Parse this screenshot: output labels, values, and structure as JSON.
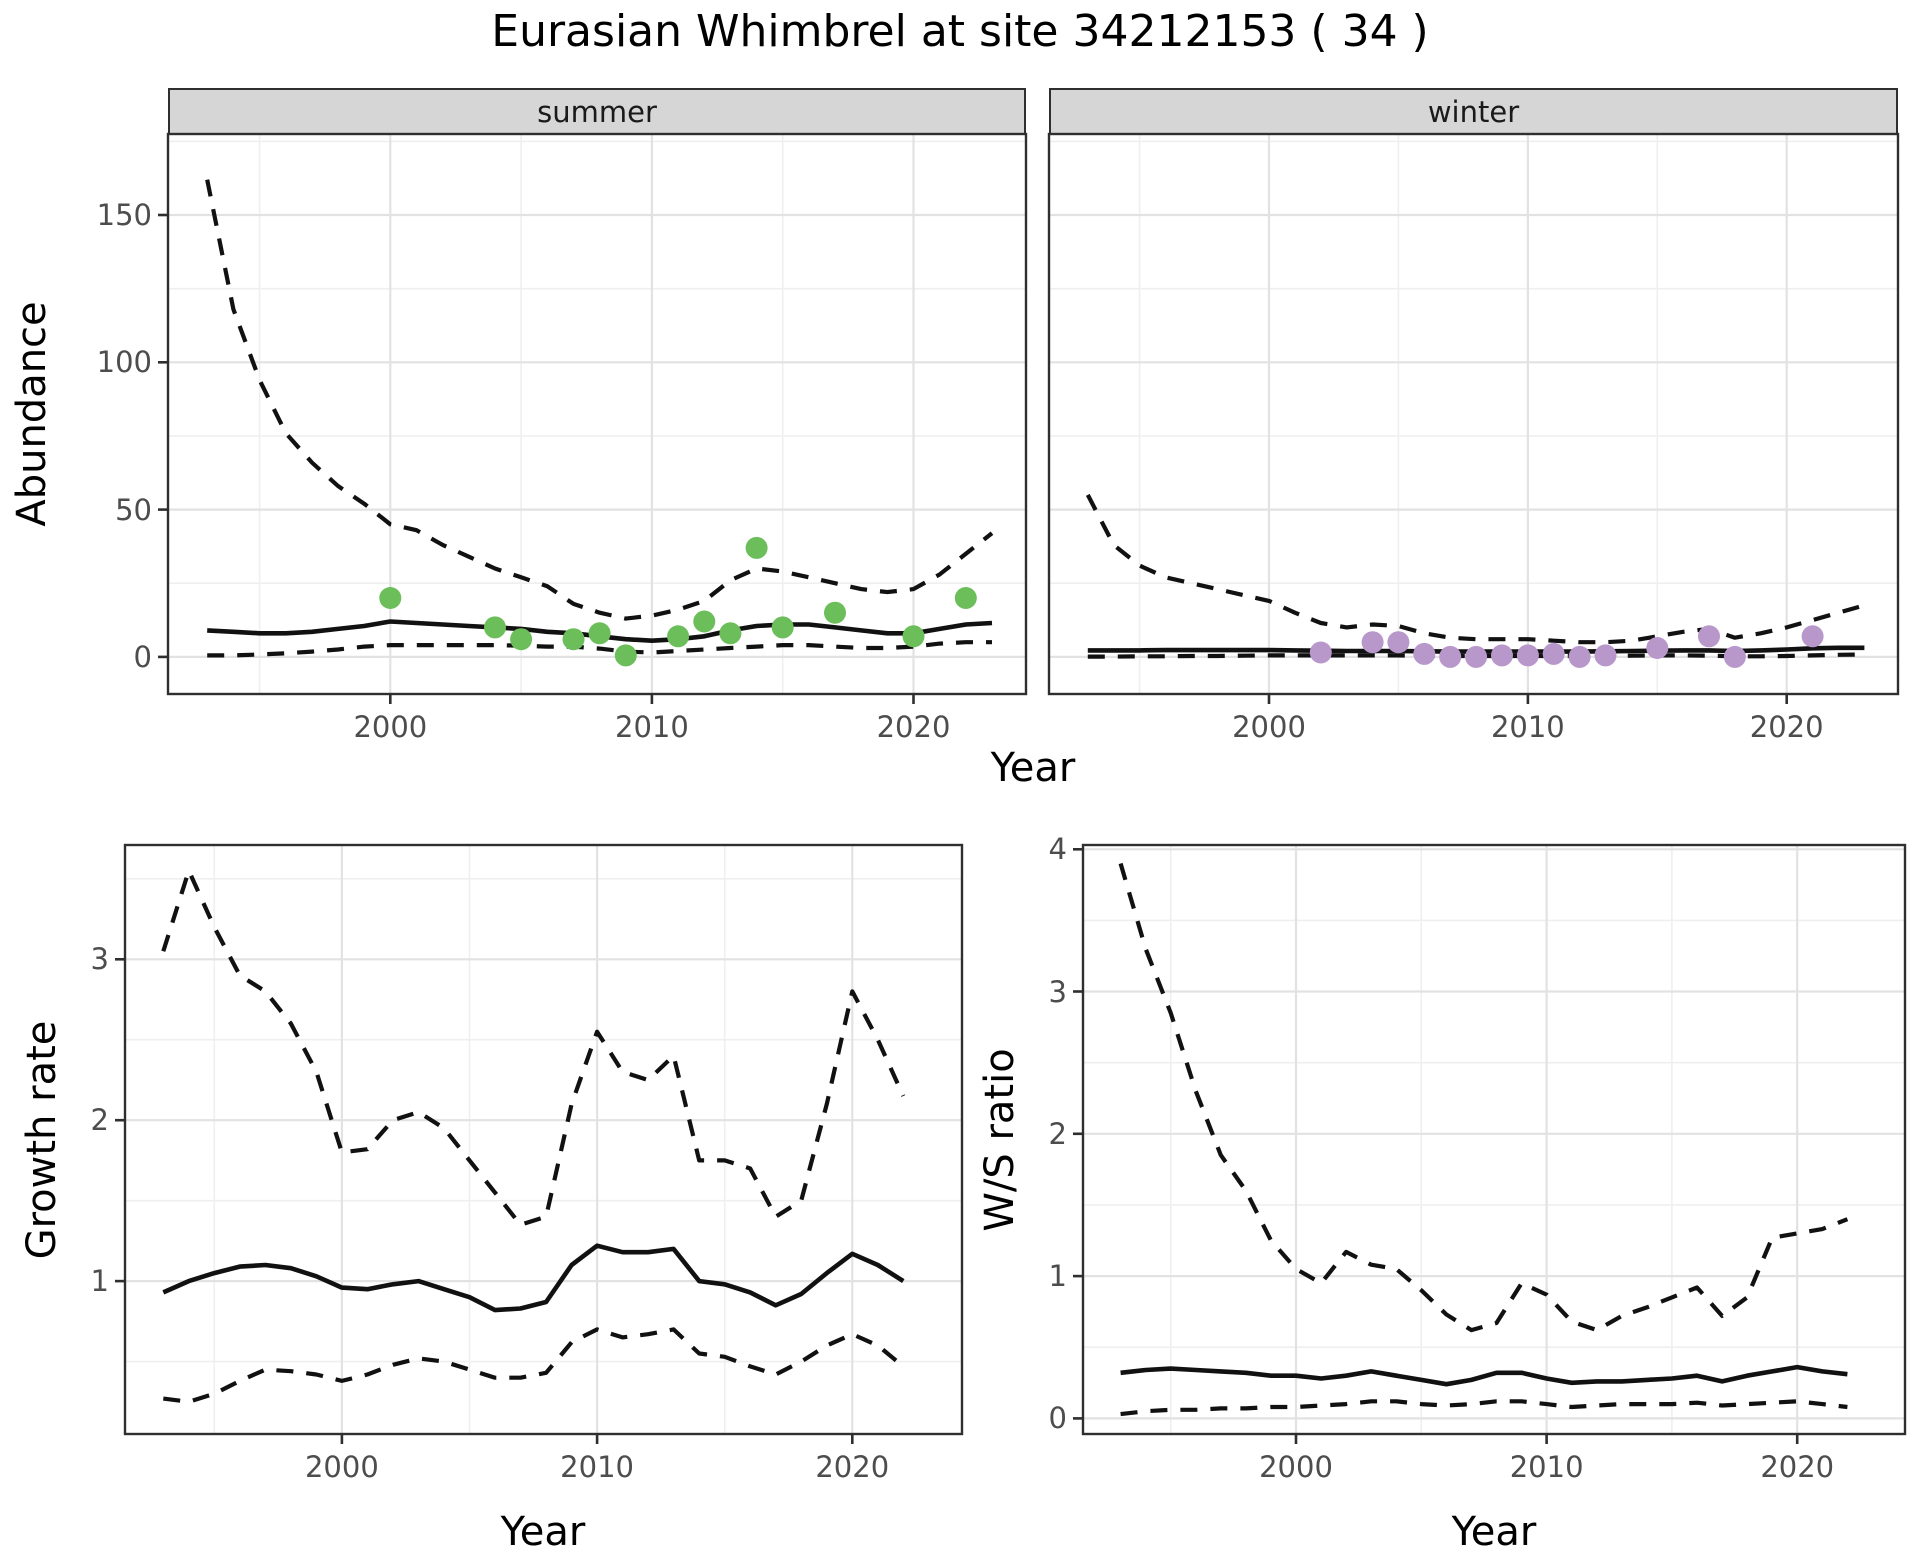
{
  "title": "Eurasian Whimbrel at site 34212153 ( 34 )",
  "facets": [
    {
      "label": "summer"
    },
    {
      "label": "winter"
    }
  ],
  "axes": {
    "x_title": "Year",
    "abundance": "Abundance",
    "growth": "Growth rate",
    "ws": "W/S ratio"
  },
  "colors": {
    "summer_point": "#6BBE59",
    "winter_point": "#B897CB",
    "line": "#111111",
    "strip_fill": "#D6D6D6",
    "grid_major": "#E2E2E2",
    "grid_minor": "#EFEFEF",
    "border": "#2F2F2F",
    "tick_text": "#4D4D4D"
  },
  "chart_data": [
    {
      "id": "abundance_summer",
      "type": "line",
      "facet": "summer",
      "xlabel": "Year",
      "ylabel": "Abundance",
      "xlim": [
        1991.5,
        2024.3
      ],
      "ylim": [
        -12.6,
        177.5
      ],
      "x_ticks": [
        2000,
        2010,
        2020
      ],
      "x_minor": [
        1995,
        2005,
        2015
      ],
      "y_ticks": [
        0,
        50,
        100,
        150
      ],
      "y_minor": [
        25,
        75,
        125,
        175
      ],
      "show_y_tick_labels": true,
      "years": [
        1993,
        1994,
        1995,
        1996,
        1997,
        1998,
        1999,
        2000,
        2001,
        2002,
        2003,
        2004,
        2005,
        2006,
        2007,
        2008,
        2009,
        2010,
        2011,
        2012,
        2013,
        2014,
        2015,
        2016,
        2017,
        2018,
        2019,
        2020,
        2021,
        2022,
        2023
      ],
      "series": [
        {
          "name": "upper 95% CI",
          "style": "dashed",
          "values": [
            162,
            118,
            94,
            76,
            66,
            58,
            52,
            45,
            43,
            38,
            34,
            30,
            27,
            24,
            18,
            15,
            13,
            14,
            16,
            19,
            26,
            30,
            29,
            27,
            25,
            23,
            22,
            23,
            28,
            35,
            42
          ]
        },
        {
          "name": "median",
          "style": "solid",
          "values": [
            9,
            8.5,
            8,
            8,
            8.5,
            9.5,
            10.5,
            12,
            11.5,
            11,
            10.5,
            10,
            9.5,
            8.5,
            8,
            7,
            6,
            5.5,
            6,
            7,
            9,
            10.5,
            11,
            11,
            10,
            9,
            8,
            8,
            9.5,
            11,
            11.5
          ]
        },
        {
          "name": "lower 95% CI",
          "style": "dashed",
          "values": [
            0.5,
            0.5,
            0.8,
            1.2,
            1.8,
            2.5,
            3.5,
            4,
            4,
            4,
            4,
            4,
            3.8,
            3.5,
            3.5,
            2.8,
            1.8,
            1.5,
            2,
            2.5,
            3,
            3.5,
            4,
            4,
            3.5,
            3,
            3,
            3.5,
            4.5,
            5,
            5
          ]
        }
      ],
      "points": {
        "name": "summer counts",
        "color_key": "summer_point",
        "x": [
          2000,
          2004,
          2005,
          2007,
          2008,
          2009,
          2011,
          2012,
          2013,
          2014,
          2015,
          2017,
          2020,
          2022
        ],
        "y": [
          20,
          10,
          6,
          6,
          8,
          0.5,
          7,
          12,
          8,
          37,
          10,
          15,
          7,
          20
        ]
      }
    },
    {
      "id": "abundance_winter",
      "type": "line",
      "facet": "winter",
      "xlabel": "Year",
      "ylabel": "Abundance",
      "xlim": [
        1991.5,
        2024.3
      ],
      "ylim": [
        -12.6,
        177.5
      ],
      "x_ticks": [
        2000,
        2010,
        2020
      ],
      "x_minor": [
        1995,
        2005,
        2015
      ],
      "y_ticks": [
        0,
        50,
        100,
        150
      ],
      "y_minor": [
        25,
        75,
        125,
        175
      ],
      "show_y_tick_labels": false,
      "years": [
        1993,
        1994,
        1995,
        1996,
        1997,
        1998,
        1999,
        2000,
        2001,
        2002,
        2003,
        2004,
        2005,
        2006,
        2007,
        2008,
        2009,
        2010,
        2011,
        2012,
        2013,
        2014,
        2015,
        2016,
        2017,
        2018,
        2019,
        2020,
        2021,
        2022,
        2023
      ],
      "series": [
        {
          "name": "upper 95% CI",
          "style": "dashed",
          "values": [
            55,
            38,
            31,
            27,
            25,
            23,
            21,
            19,
            15,
            11.5,
            10,
            11,
            10.5,
            8,
            6.5,
            6,
            6,
            6,
            5.5,
            5,
            5,
            5.5,
            7,
            8.5,
            9.5,
            6.5,
            8,
            10,
            12.5,
            15,
            17.5
          ]
        },
        {
          "name": "median",
          "style": "solid",
          "values": [
            2.2,
            2.2,
            2.2,
            2.3,
            2.3,
            2.3,
            2.3,
            2.3,
            2.2,
            2.1,
            2,
            2,
            2,
            1.9,
            1.8,
            1.8,
            1.8,
            1.8,
            1.8,
            1.8,
            1.9,
            2,
            2.1,
            2.2,
            2.2,
            2,
            2.2,
            2.5,
            2.9,
            3.1,
            3.1
          ]
        },
        {
          "name": "lower 95% CI",
          "style": "dashed",
          "values": [
            0.1,
            0.1,
            0.2,
            0.2,
            0.3,
            0.3,
            0.4,
            0.5,
            0.5,
            0.5,
            0.5,
            0.5,
            0.5,
            0.4,
            0.3,
            0.3,
            0.3,
            0.3,
            0.3,
            0.3,
            0.3,
            0.4,
            0.5,
            0.5,
            0.4,
            0.2,
            0.2,
            0.3,
            0.5,
            0.7,
            0.8
          ]
        }
      ],
      "points": {
        "name": "winter counts",
        "color_key": "winter_point",
        "x": [
          2002,
          2004,
          2005,
          2006,
          2007,
          2008,
          2009,
          2010,
          2011,
          2012,
          2013,
          2015,
          2017,
          2018,
          2021
        ],
        "y": [
          1.5,
          5,
          5,
          1,
          0,
          0,
          0.5,
          0.5,
          1,
          0,
          0.5,
          3,
          7,
          0,
          7
        ]
      }
    },
    {
      "id": "growth_rate",
      "type": "line",
      "xlabel": "Year",
      "ylabel": "Growth rate",
      "xlim": [
        1991.5,
        2024.3
      ],
      "ylim": [
        0.05,
        3.71
      ],
      "x_ticks": [
        2000,
        2010,
        2020
      ],
      "x_minor": [
        1995,
        2005,
        2015
      ],
      "y_ticks": [
        1,
        2,
        3
      ],
      "y_minor": [
        0.5,
        1.5,
        2.5,
        3.5
      ],
      "show_y_tick_labels": true,
      "years": [
        1993,
        1994,
        1995,
        1996,
        1997,
        1998,
        1999,
        2000,
        2001,
        2002,
        2003,
        2004,
        2005,
        2006,
        2007,
        2008,
        2009,
        2010,
        2011,
        2012,
        2013,
        2014,
        2015,
        2016,
        2017,
        2018,
        2019,
        2020,
        2021,
        2022
      ],
      "series": [
        {
          "name": "upper 95% CI",
          "style": "dashed",
          "values": [
            3.05,
            3.55,
            3.2,
            2.9,
            2.8,
            2.6,
            2.3,
            1.8,
            1.82,
            2.0,
            2.05,
            1.95,
            1.75,
            1.55,
            1.35,
            1.4,
            2.1,
            2.55,
            2.3,
            2.25,
            2.4,
            1.75,
            1.75,
            1.7,
            1.4,
            1.5,
            2.1,
            2.8,
            2.5,
            2.15
          ]
        },
        {
          "name": "median",
          "style": "solid",
          "values": [
            0.93,
            1.0,
            1.05,
            1.09,
            1.1,
            1.08,
            1.03,
            0.96,
            0.95,
            0.98,
            1.0,
            0.95,
            0.9,
            0.82,
            0.83,
            0.87,
            1.1,
            1.22,
            1.18,
            1.18,
            1.2,
            1.0,
            0.98,
            0.93,
            0.85,
            0.92,
            1.05,
            1.17,
            1.1,
            1.0
          ]
        },
        {
          "name": "lower 95% CI",
          "style": "dashed",
          "values": [
            0.27,
            0.25,
            0.3,
            0.38,
            0.45,
            0.44,
            0.42,
            0.38,
            0.42,
            0.48,
            0.52,
            0.5,
            0.45,
            0.4,
            0.4,
            0.43,
            0.62,
            0.7,
            0.65,
            0.67,
            0.7,
            0.55,
            0.53,
            0.47,
            0.42,
            0.5,
            0.6,
            0.67,
            0.6,
            0.47
          ]
        }
      ]
    },
    {
      "id": "ws_ratio",
      "type": "line",
      "xlabel": "Year",
      "ylabel": "W/S ratio",
      "xlim": [
        1991.5,
        2024.3
      ],
      "ylim": [
        -0.11,
        4.03
      ],
      "x_ticks": [
        2000,
        2010,
        2020
      ],
      "x_minor": [
        1995,
        2005,
        2015
      ],
      "y_ticks": [
        0,
        1,
        2,
        3,
        4
      ],
      "y_minor": [
        0.5,
        1.5,
        2.5,
        3.5
      ],
      "show_y_tick_labels": true,
      "years": [
        1993,
        1994,
        1995,
        1996,
        1997,
        1998,
        1999,
        2000,
        2001,
        2002,
        2003,
        2004,
        2005,
        2006,
        2007,
        2008,
        2009,
        2010,
        2011,
        2012,
        2013,
        2014,
        2015,
        2016,
        2017,
        2018,
        2019,
        2020,
        2021,
        2022
      ],
      "series": [
        {
          "name": "upper 95% CI",
          "style": "dashed",
          "values": [
            3.9,
            3.3,
            2.85,
            2.3,
            1.85,
            1.6,
            1.25,
            1.05,
            0.95,
            1.17,
            1.08,
            1.05,
            0.9,
            0.73,
            0.62,
            0.67,
            0.95,
            0.87,
            0.68,
            0.62,
            0.72,
            0.78,
            0.85,
            0.92,
            0.72,
            0.85,
            1.27,
            1.3,
            1.33,
            1.4
          ]
        },
        {
          "name": "median",
          "style": "solid",
          "values": [
            0.32,
            0.34,
            0.35,
            0.34,
            0.33,
            0.32,
            0.3,
            0.3,
            0.28,
            0.3,
            0.33,
            0.3,
            0.27,
            0.24,
            0.27,
            0.32,
            0.32,
            0.28,
            0.25,
            0.26,
            0.26,
            0.27,
            0.28,
            0.3,
            0.26,
            0.3,
            0.33,
            0.36,
            0.33,
            0.31
          ]
        },
        {
          "name": "lower 95% CI",
          "style": "dashed",
          "values": [
            0.03,
            0.05,
            0.06,
            0.06,
            0.07,
            0.07,
            0.08,
            0.08,
            0.09,
            0.1,
            0.12,
            0.12,
            0.1,
            0.09,
            0.1,
            0.12,
            0.12,
            0.1,
            0.08,
            0.09,
            0.1,
            0.1,
            0.1,
            0.11,
            0.09,
            0.1,
            0.11,
            0.12,
            0.1,
            0.08
          ]
        }
      ]
    }
  ]
}
